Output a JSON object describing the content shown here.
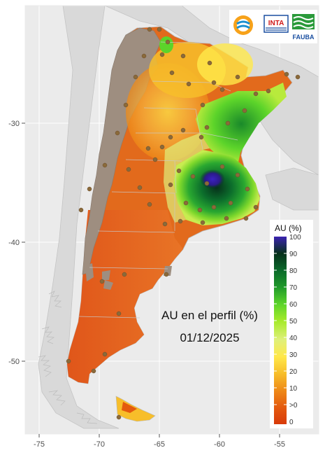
{
  "overlay": {
    "title": "AU en el perfil (%)",
    "date": "01/12/2025"
  },
  "logos": {
    "inta": "INTA",
    "fauba": "FAUBA"
  },
  "axes": {
    "x_ticks": [
      "-75",
      "-70",
      "-65",
      "-60",
      "-55"
    ],
    "y_ticks": [
      "-30",
      "-40",
      "-50"
    ]
  },
  "legend": {
    "title": "AU (%)",
    "labels": [
      "100",
      "90",
      "80",
      "70",
      "60",
      "50",
      "40",
      "30",
      "20",
      "10",
      ">0",
      "0"
    ],
    "colors": [
      "#2b1a9a",
      "#06301a",
      "#0a6a2a",
      "#1f9a2a",
      "#5cd42a",
      "#a6ea2a",
      "#dff07a",
      "#ffe84a",
      "#f7be2a",
      "#ee8a18",
      "#e45a0e",
      "#d83a0a"
    ]
  },
  "colors": {
    "panel_bg": "#ebebeb",
    "neighbor_land": "#d9d9d9",
    "andes_gray": "#9e8e80",
    "station_dot": "#8a6a3a"
  }
}
